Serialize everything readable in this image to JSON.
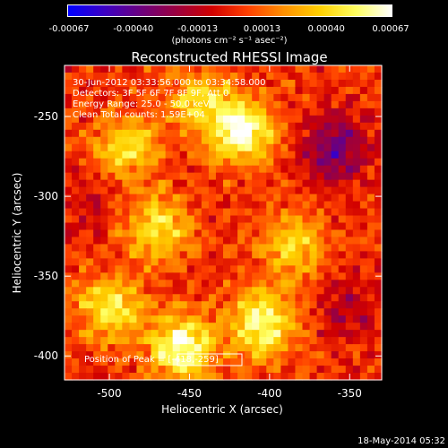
{
  "chart_data": {
    "type": "heatmap",
    "title": "Reconstructed RHESSI Image",
    "xlabel": "Heliocentric X (arcsec)",
    "ylabel": "Heliocentric Y (arcsec)",
    "xlim": [
      -528,
      -330
    ],
    "ylim": [
      -415,
      -218
    ],
    "x_ticks": [
      "-500",
      "-450",
      "-400",
      "-350"
    ],
    "y_ticks": [
      "-250",
      "-300",
      "-350",
      "-400"
    ],
    "colorbar": {
      "min": -0.00067,
      "max": 0.00067,
      "tick_labels": [
        "-0.00067",
        "-0.00040",
        "-0.00013",
        "0.00013",
        "0.00040",
        "0.00067"
      ],
      "units": "(photons cm⁻² s⁻¹ asec⁻²)",
      "colors": [
        "#0000ff",
        "#3b00c4",
        "#6a0080",
        "#9a0040",
        "#d00000",
        "#ff4000",
        "#ff9000",
        "#ffd000",
        "#ffff60",
        "#ffffff"
      ]
    },
    "annotations": [
      "30-Jun-2012 03:33:56.000 to 03:34:58.000",
      "Detectors: 3F 5F 6F 7F 8F 9F, Att 0",
      "Energy Range: 25.0 - 50.0 keV",
      "Clean      Total counts: 1.59E+04"
    ],
    "peak_label": "Position of Peak = [-418,-259]",
    "peak_position": [
      -418,
      -259
    ],
    "bright_regions": [
      {
        "x": -418,
        "y": -259,
        "level": 0.95
      },
      {
        "x": -455,
        "y": -395,
        "level": 0.9
      },
      {
        "x": -405,
        "y": -380,
        "level": 0.85
      },
      {
        "x": -500,
        "y": -370,
        "level": 0.7
      },
      {
        "x": -470,
        "y": -320,
        "level": 0.65
      },
      {
        "x": -490,
        "y": -270,
        "level": 0.6
      },
      {
        "x": -385,
        "y": -330,
        "level": 0.55
      },
      {
        "x": -445,
        "y": -240,
        "level": 0.5
      }
    ],
    "dim_regions": [
      {
        "x": -360,
        "y": -270,
        "level": -0.6
      },
      {
        "x": -350,
        "y": -370,
        "level": -0.3
      },
      {
        "x": -515,
        "y": -300,
        "level": -0.2
      }
    ]
  },
  "footer": {
    "date": "18-May-2014 05:32"
  }
}
